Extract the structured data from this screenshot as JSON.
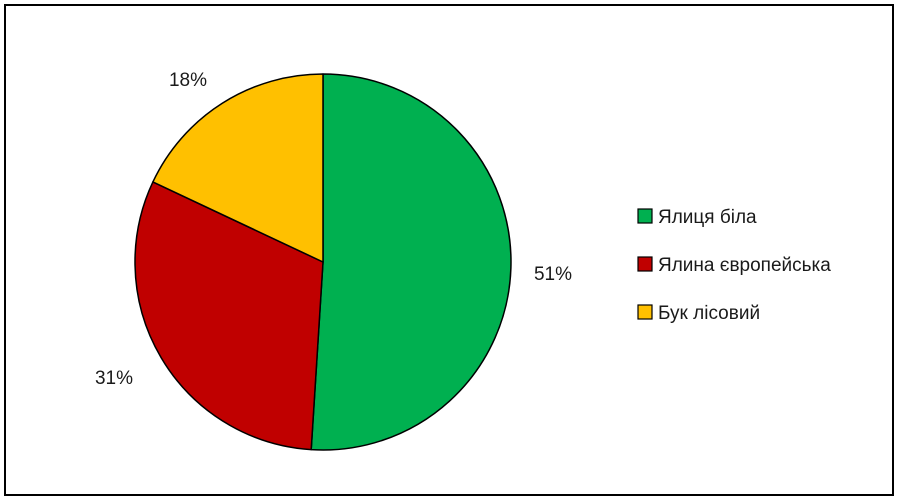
{
  "chart_data": {
    "type": "pie",
    "categories": [
      "Ялиця біла",
      "Ялина європейська",
      "Бук лісовий"
    ],
    "values": [
      51,
      31,
      18
    ],
    "data_labels": [
      "51%",
      "31%",
      "18%"
    ],
    "colors": [
      "#00b050",
      "#c00000",
      "#ffc000"
    ],
    "title": "",
    "legend": "right"
  }
}
